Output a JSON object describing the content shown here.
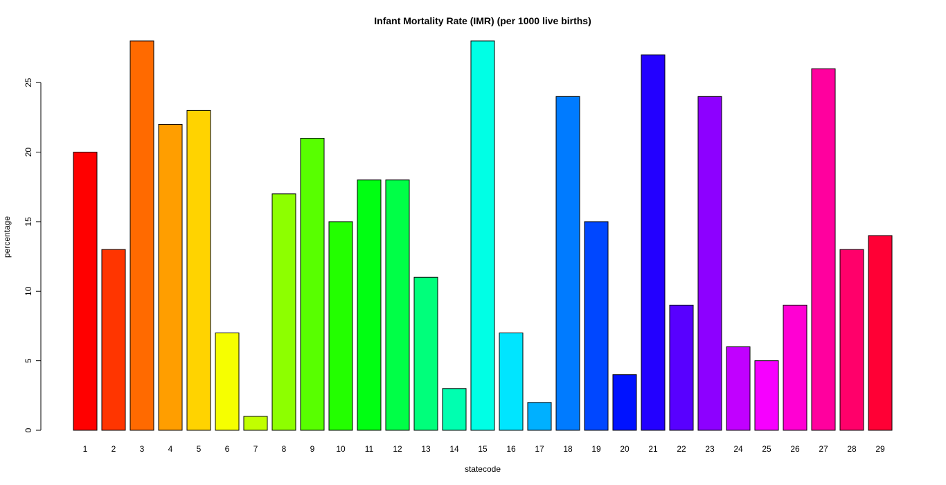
{
  "chart_data": {
    "type": "bar",
    "title": "Infant Mortality Rate (IMR) (per 1000 live births)",
    "xlabel": "statecode",
    "ylabel": "percentage",
    "ylim": [
      0,
      28
    ],
    "yticks": [
      0,
      5,
      10,
      15,
      20,
      25
    ],
    "grid": false,
    "categories": [
      "1",
      "2",
      "3",
      "4",
      "5",
      "6",
      "7",
      "8",
      "9",
      "10",
      "11",
      "12",
      "13",
      "14",
      "15",
      "16",
      "17",
      "18",
      "19",
      "20",
      "21",
      "22",
      "23",
      "24",
      "25",
      "26",
      "27",
      "28",
      "29"
    ],
    "values": [
      20,
      13,
      28,
      22,
      23,
      7,
      1,
      17,
      21,
      15,
      18,
      18,
      11,
      3,
      28,
      7,
      2,
      24,
      15,
      4,
      27,
      9,
      24,
      6,
      5,
      9,
      26,
      13,
      14
    ],
    "colors": [
      "#FF0000",
      "#FF3500",
      "#FF6A00",
      "#FF9E00",
      "#FFD300",
      "#F6FF00",
      "#C1FF00",
      "#8DFF00",
      "#58FF00",
      "#23FF00",
      "#00FF12",
      "#00FF47",
      "#00FF7B",
      "#00FFB0",
      "#00FFE5",
      "#00E5FF",
      "#00B0FF",
      "#007BFF",
      "#0047FF",
      "#0012FF",
      "#2300FF",
      "#5800FF",
      "#8D00FF",
      "#C100FF",
      "#F600FF",
      "#FF00D3",
      "#FF009E",
      "#FF006A",
      "#FF0035"
    ]
  }
}
